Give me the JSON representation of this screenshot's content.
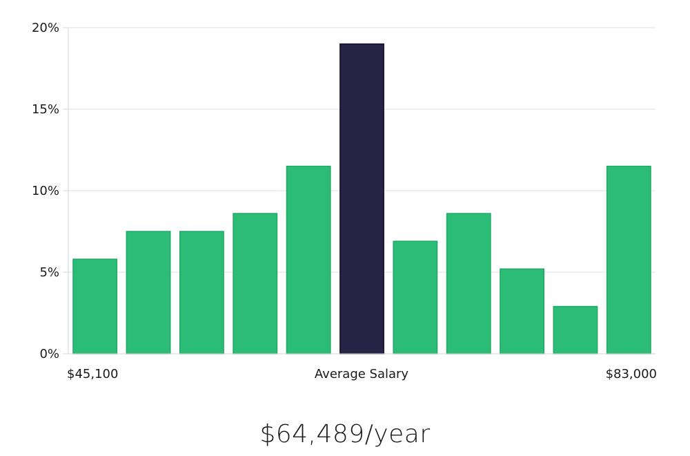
{
  "chart_data": {
    "type": "bar",
    "title": "",
    "xlabel": "Average Salary",
    "ylabel": "",
    "x_range_labels": {
      "min": "$45,100",
      "max": "$83,000"
    },
    "ylim": [
      0,
      20
    ],
    "yticks": [
      0,
      5,
      10,
      15,
      20
    ],
    "ytick_labels": [
      "0%",
      "5%",
      "10%",
      "15%",
      "20%"
    ],
    "grid": true,
    "highlight_index": 5,
    "values": [
      5.8,
      7.5,
      7.5,
      8.6,
      11.5,
      19.0,
      6.9,
      8.6,
      5.2,
      2.9,
      11.5
    ],
    "colors": {
      "bar": "#2bbd76",
      "highlight": "#272546",
      "grid": "#e0e0e0",
      "axis": "#d6d6d6"
    }
  },
  "summary": {
    "salary": "$64,489/year"
  }
}
